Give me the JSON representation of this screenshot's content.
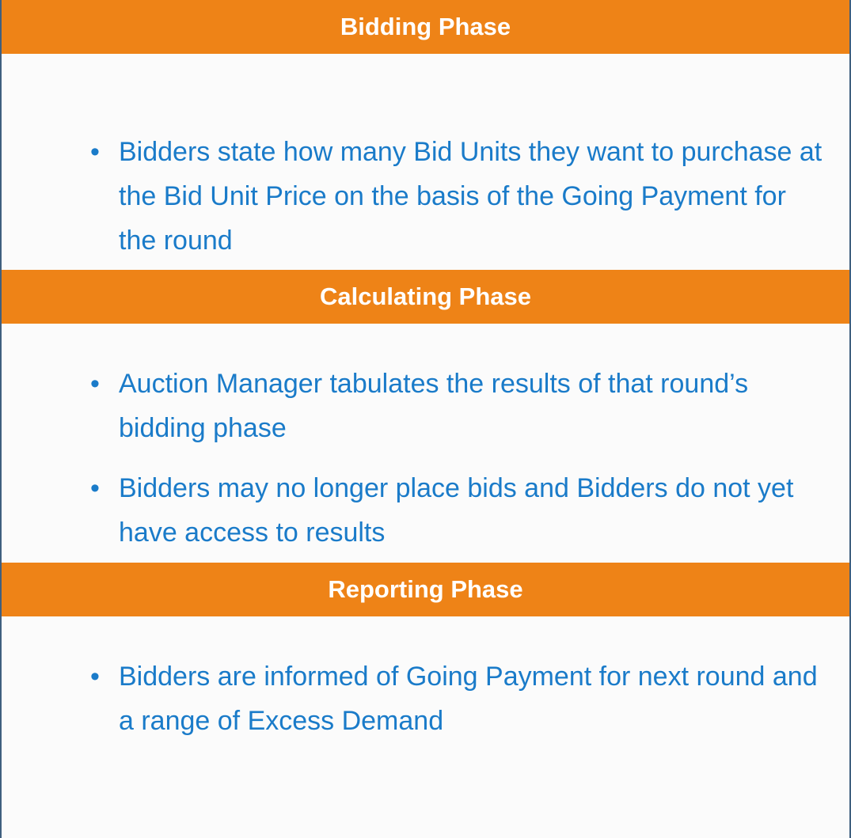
{
  "sections": [
    {
      "title": "Bidding Phase",
      "bullets": [
        "Bidders state how many Bid Units they want to purchase at the Bid Unit Price on the basis of the Going Payment for the round"
      ]
    },
    {
      "title": "Calculating Phase",
      "bullets": [
        "Auction Manager tabulates the results of that round’s bidding phase",
        "Bidders may no longer place bids and Bidders  do not yet have access to results"
      ]
    },
    {
      "title": "Reporting Phase",
      "bullets": [
        "Bidders are informed of Going Payment for next round and a range of Excess Demand"
      ]
    }
  ]
}
